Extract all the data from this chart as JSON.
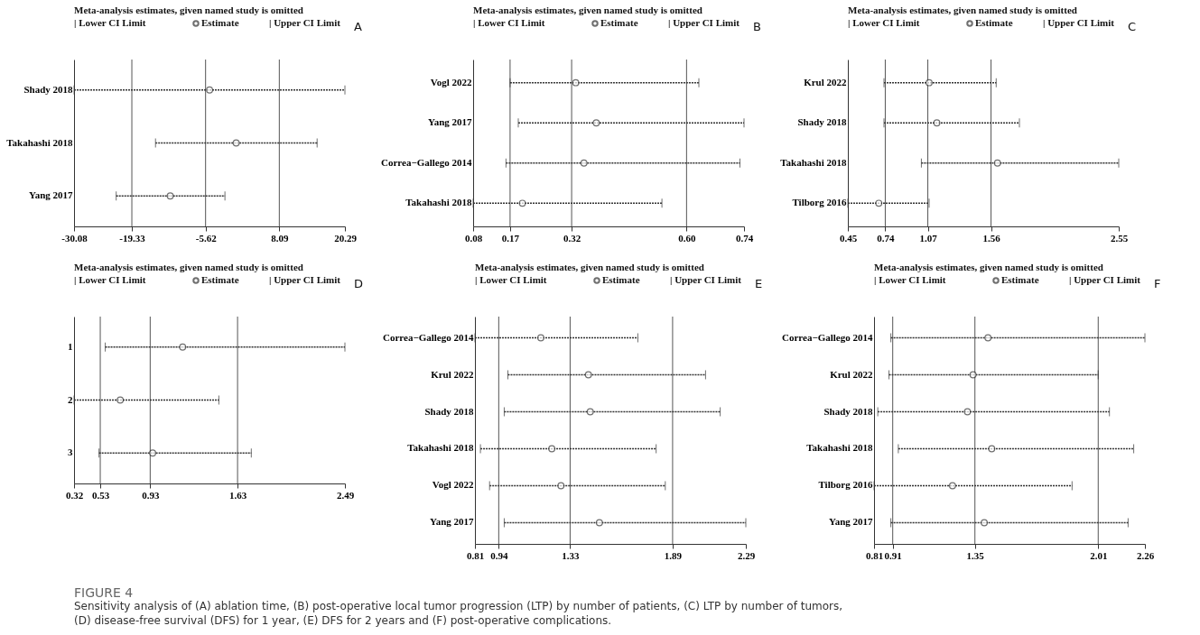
{
  "chart_data": [
    {
      "type": "scatter",
      "orientation": "horizontal",
      "legend_title": "Meta-analysis estimates, given named study is omitted",
      "legend": "top",
      "categories": [
        "Shady 2018",
        "Takahashi 2018",
        "Yang 2017"
      ],
      "series": [
        {
          "name": "Estimate",
          "color": "#333333",
          "values": [
            -4.88,
            0.07,
            -12.19
          ],
          "errors": [
            [
              -30.08,
              20.29
            ],
            [
              -14.93,
              15.12
            ],
            [
              -22.24,
              -2.02
            ]
          ]
        }
      ],
      "xlim": [
        -30.08,
        20.29
      ],
      "xticks": [
        -30.08,
        -19.33,
        -5.62,
        8.09,
        20.29
      ],
      "ref_lines": [
        {
          "axis": "x",
          "value": -19.33,
          "color": "#555555"
        },
        {
          "axis": "x",
          "value": -5.62,
          "color": "#555555"
        },
        {
          "axis": "x",
          "value": 8.09,
          "color": "#555555"
        }
      ],
      "annotations": [
        "A",
        "| Lower CI Limit",
        "| Upper CI Limit"
      ]
    },
    {
      "type": "scatter",
      "orientation": "horizontal",
      "legend_title": "Meta-analysis estimates, given named study is omitted",
      "legend": "top",
      "categories": [
        "Vogl 2022",
        "Yang 2017",
        "Correa−Gallego 2014",
        "Takahashi 2018"
      ],
      "series": [
        {
          "name": "Estimate",
          "color": "#333333",
          "values": [
            0.33,
            0.38,
            0.35,
            0.2
          ],
          "errors": [
            [
              0.17,
              0.63
            ],
            [
              0.19,
              0.74
            ],
            [
              0.16,
              0.73
            ],
            [
              0.08,
              0.54
            ]
          ]
        }
      ],
      "xlim": [
        0.08,
        0.74
      ],
      "xticks": [
        0.08,
        0.17,
        0.32,
        {
          "value": 0.6,
          "label": "0.60"
        },
        0.74
      ],
      "ref_lines": [
        {
          "axis": "x",
          "value": 0.17,
          "color": "#555555"
        },
        {
          "axis": "x",
          "value": 0.32,
          "color": "#555555"
        },
        {
          "axis": "x",
          "value": 0.6,
          "color": "#555555"
        }
      ],
      "annotations": [
        "B",
        "| Lower CI Limit",
        "| Upper CI Limit"
      ]
    },
    {
      "type": "scatter",
      "orientation": "horizontal",
      "legend_title": "Meta-analysis estimates, given named study is omitted",
      "legend": "top",
      "categories": [
        "Krul 2022",
        "Shady 2018",
        "Takahashi 2018",
        "Tilborg 2016"
      ],
      "series": [
        {
          "name": "Estimate",
          "color": "#333333",
          "values": [
            1.08,
            1.14,
            1.61,
            0.69
          ],
          "errors": [
            [
              0.73,
              1.6
            ],
            [
              0.73,
              1.78
            ],
            [
              1.02,
              2.55
            ],
            [
              0.45,
              1.08
            ]
          ]
        }
      ],
      "xlim": [
        0.45,
        2.55
      ],
      "xticks": [
        0.45,
        0.74,
        1.07,
        1.56,
        2.55
      ],
      "ref_lines": [
        {
          "axis": "x",
          "value": 0.74,
          "color": "#555555"
        },
        {
          "axis": "x",
          "value": 1.07,
          "color": "#555555"
        },
        {
          "axis": "x",
          "value": 1.56,
          "color": "#555555"
        }
      ],
      "annotations": [
        "C",
        "| Lower CI Limit",
        "| Upper CI Limit"
      ]
    },
    {
      "type": "scatter",
      "orientation": "horizontal",
      "legend_title": "Meta-analysis estimates, given named study is omitted",
      "legend": "top",
      "categories": [
        "1",
        "2",
        "3"
      ],
      "series": [
        {
          "name": "Estimate",
          "color": "#333333",
          "values": [
            1.19,
            0.69,
            0.95
          ],
          "errors": [
            [
              0.57,
              2.49
            ],
            [
              0.32,
              1.48
            ],
            [
              0.52,
              1.74
            ]
          ]
        }
      ],
      "xlim": [
        0.32,
        2.49
      ],
      "xticks": [
        0.32,
        0.53,
        0.93,
        1.63,
        2.49
      ],
      "ref_lines": [
        {
          "axis": "x",
          "value": 0.53,
          "color": "#555555"
        },
        {
          "axis": "x",
          "value": 0.93,
          "color": "#555555"
        },
        {
          "axis": "x",
          "value": 1.63,
          "color": "#555555"
        }
      ],
      "annotations": [
        "D",
        "| Lower CI Limit",
        "| Upper CI Limit"
      ]
    },
    {
      "type": "scatter",
      "orientation": "horizontal",
      "legend_title": "Meta-analysis estimates, given named study is omitted",
      "legend": "top",
      "categories": [
        "Correa−Gallego 2014",
        "Krul 2022",
        "Shady 2018",
        "Takahashi 2018",
        "Vogl 2022",
        "Yang 2017"
      ],
      "series": [
        {
          "name": "Estimate",
          "color": "#333333",
          "values": [
            1.17,
            1.43,
            1.44,
            1.23,
            1.28,
            1.49
          ],
          "errors": [
            [
              0.81,
              1.7
            ],
            [
              0.99,
              2.07
            ],
            [
              0.97,
              2.15
            ],
            [
              0.84,
              1.8
            ],
            [
              0.89,
              1.85
            ],
            [
              0.97,
              2.29
            ]
          ]
        }
      ],
      "xlim": [
        0.81,
        2.29
      ],
      "xticks": [
        0.81,
        0.94,
        1.33,
        1.89,
        2.29
      ],
      "ref_lines": [
        {
          "axis": "x",
          "value": 0.94,
          "color": "#555555"
        },
        {
          "axis": "x",
          "value": 1.33,
          "color": "#555555"
        },
        {
          "axis": "x",
          "value": 1.89,
          "color": "#555555"
        }
      ],
      "annotations": [
        "E",
        "| Lower CI Limit",
        "| Upper CI Limit"
      ]
    },
    {
      "type": "scatter",
      "orientation": "horizontal",
      "legend_title": "Meta-analysis estimates, given named study is omitted",
      "legend": "top",
      "categories": [
        "Correa−Gallego 2014",
        "Krul 2022",
        "Shady 2018",
        "Takahashi 2018",
        "Tilborg 2016",
        "Yang 2017"
      ],
      "series": [
        {
          "name": "Estimate",
          "color": "#333333",
          "values": [
            1.42,
            1.34,
            1.31,
            1.44,
            1.23,
            1.4
          ],
          "errors": [
            [
              0.9,
              2.26
            ],
            [
              0.89,
              2.01
            ],
            [
              0.83,
              2.07
            ],
            [
              0.94,
              2.2
            ],
            [
              0.81,
              1.87
            ],
            [
              0.9,
              2.17
            ]
          ]
        }
      ],
      "xlim": [
        0.81,
        2.26
      ],
      "xticks": [
        0.81,
        0.91,
        1.35,
        2.01,
        2.26
      ],
      "ref_lines": [
        {
          "axis": "x",
          "value": 0.91,
          "color": "#555555"
        },
        {
          "axis": "x",
          "value": 1.35,
          "color": "#555555"
        },
        {
          "axis": "x",
          "value": 2.01,
          "color": "#555555"
        }
      ],
      "annotations": [
        "F",
        "| Lower CI Limit",
        "| Upper CI Limit",
        "FIGURE 4",
        "Sensitivity analysis of (A) ablation time, (B) post-operative local tumor progression (LTP) by number of patients, (C) LTP by number of tumors,",
        "(D) disease-free survival (DFS) for 1 year, (E) DFS for 2 years and (F) post-operative complications."
      ]
    }
  ]
}
